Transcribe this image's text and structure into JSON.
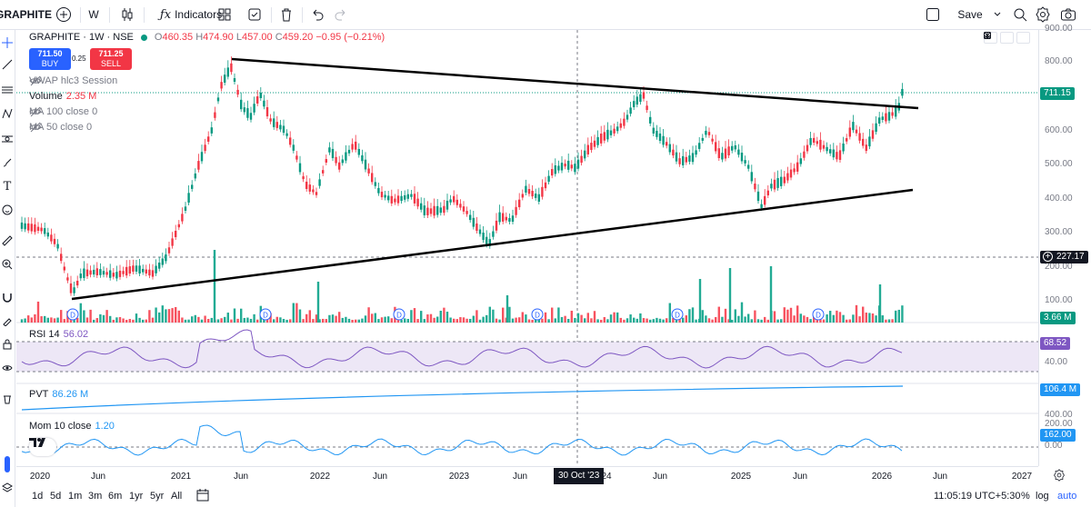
{
  "toolbar": {
    "symbol": "GRAPHITE",
    "interval": "W",
    "indicators_label": "Indicators",
    "save_label": "Save"
  },
  "legend": {
    "title": "GRAPHITE · 1W · NSE",
    "o_label": "O",
    "o": "460.35",
    "h_label": "H",
    "h": "474.90",
    "l_label": "L",
    "l": "457.00",
    "c_label": "C",
    "c": "459.20",
    "change": "−0.95 (−0.21%)",
    "buy_price": "711.50",
    "buy_label": "BUY",
    "spread": "0.25",
    "sell_price": "711.25",
    "sell_label": "SELL",
    "vwap_label": "VWAP hlc3 Session",
    "volume_label": "Volume",
    "volume_value": "2.35 M",
    "ma100_label": "MA 100 close 0",
    "ma50_label": "MA 50 close 0"
  },
  "panes": {
    "rsi_label": "RSI 14",
    "rsi_value": "56.02",
    "pvt_label": "PVT",
    "pvt_value": "86.26 M",
    "mom_label": "Mom 10 close",
    "mom_value": "1.20"
  },
  "price_scale": {
    "ticks": [
      "900.00",
      "800.00",
      "700.00",
      "600.00",
      "500.00",
      "400.00",
      "300.00",
      "200.00",
      "100.00"
    ],
    "last_price": "711.15",
    "crosshair_price": "227.17",
    "volume_tag": "3.66 M",
    "rsi_ticks": [
      "40.00"
    ],
    "rsi_tag": "68.52",
    "pvt_tag": "106.4 M",
    "mom_ticks": [
      "400.00",
      "200.00",
      "0.00"
    ],
    "mom_tag": "162.00"
  },
  "time_axis": {
    "labels": [
      "2020",
      "Jun",
      "2021",
      "Jun",
      "2022",
      "Jun",
      "2023",
      "Jun",
      "24",
      "Jun",
      "2025",
      "Jun",
      "2026",
      "Jun",
      "2027"
    ],
    "crosshair_date": "30 Oct '23"
  },
  "bottom_bar": {
    "ranges": [
      "1d",
      "5d",
      "1m",
      "3m",
      "6m",
      "1yr",
      "5yr",
      "All"
    ],
    "clock": "11:05:19 UTC+5:30",
    "percent": "%",
    "log": "log",
    "auto": "auto"
  },
  "colors": {
    "up": "#089981",
    "down": "#f23645",
    "volume_up": "#22ab94",
    "volume_down": "#f7525f",
    "rsi": "#7e57c2",
    "rsi_band": "#ede7f6",
    "pvt": "#2196f3",
    "mom": "#2196f3",
    "trendline": "#000000",
    "buy": "#2962ff",
    "sell": "#f23645"
  }
}
